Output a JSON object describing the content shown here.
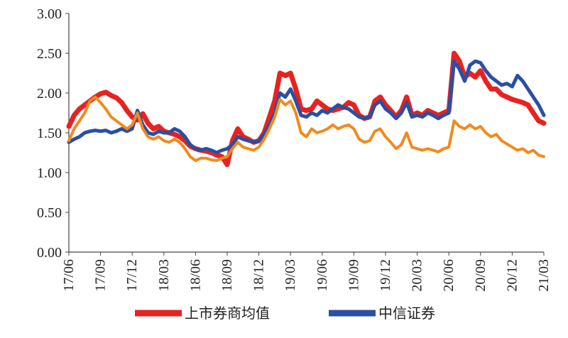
{
  "chart_data": {
    "type": "line",
    "title": "",
    "xlabel": "",
    "ylabel": "",
    "ylim": [
      0,
      3.0
    ],
    "y_ticks": [
      "0.00",
      "0.50",
      "1.00",
      "1.50",
      "2.00",
      "2.50",
      "3.00"
    ],
    "x_ticks": [
      "17/06",
      "17/09",
      "17/12",
      "18/03",
      "18/06",
      "18/09",
      "18/12",
      "19/03",
      "19/06",
      "19/09",
      "19/12",
      "20/03",
      "20/06",
      "20/09",
      "20/12",
      "21/03"
    ],
    "grid": false,
    "legend_position": "bottom",
    "x_months": [
      0,
      0.5,
      1,
      1.5,
      2,
      2.5,
      3,
      3.5,
      4,
      4.5,
      5,
      5.5,
      6,
      6.5,
      7,
      7.5,
      8,
      8.5,
      9,
      9.5,
      10,
      10.5,
      11,
      11.5,
      12,
      12.5,
      13,
      13.5,
      14,
      14.5,
      15,
      15.5,
      16,
      16.5,
      17,
      17.5,
      18,
      18.5,
      19,
      19.5,
      20,
      20.5,
      21,
      21.5,
      22,
      22.5,
      23,
      23.5,
      24,
      24.5,
      25,
      25.5,
      26,
      26.5,
      27,
      27.5,
      28,
      28.5,
      29,
      29.5,
      30,
      30.5,
      31,
      31.5,
      32,
      32.5,
      33,
      33.5,
      34,
      34.5,
      35,
      35.5,
      36,
      36.5,
      37,
      37.5,
      38,
      38.5,
      39,
      39.5,
      40,
      40.5,
      41,
      41.5,
      42,
      42.5,
      43,
      43.5,
      44,
      44.5,
      45
    ],
    "series": [
      {
        "name": "上市券商均值",
        "color": "#e8221f",
        "values": [
          1.58,
          1.72,
          1.8,
          1.85,
          1.9,
          1.95,
          1.99,
          2.01,
          1.97,
          1.94,
          1.88,
          1.78,
          1.7,
          1.66,
          1.74,
          1.62,
          1.55,
          1.58,
          1.52,
          1.5,
          1.48,
          1.45,
          1.4,
          1.33,
          1.3,
          1.28,
          1.27,
          1.25,
          1.22,
          1.2,
          1.1,
          1.4,
          1.55,
          1.45,
          1.42,
          1.38,
          1.4,
          1.5,
          1.7,
          1.9,
          2.25,
          2.22,
          2.25,
          2.05,
          1.8,
          1.78,
          1.8,
          1.9,
          1.85,
          1.8,
          1.78,
          1.8,
          1.82,
          1.88,
          1.85,
          1.72,
          1.68,
          1.7,
          1.9,
          1.95,
          1.85,
          1.78,
          1.7,
          1.78,
          1.95,
          1.72,
          1.75,
          1.72,
          1.78,
          1.75,
          1.72,
          1.75,
          1.78,
          2.5,
          2.4,
          2.2,
          2.25,
          2.2,
          2.28,
          2.15,
          2.05,
          2.05,
          1.98,
          1.95,
          1.92,
          1.9,
          1.88,
          1.85,
          1.75,
          1.65,
          1.62
        ]
      },
      {
        "name": "中信证券",
        "color": "#2a4fa3",
        "values": [
          1.38,
          1.42,
          1.45,
          1.5,
          1.52,
          1.53,
          1.52,
          1.53,
          1.5,
          1.52,
          1.55,
          1.52,
          1.55,
          1.78,
          1.6,
          1.5,
          1.48,
          1.52,
          1.5,
          1.5,
          1.55,
          1.52,
          1.45,
          1.35,
          1.3,
          1.28,
          1.3,
          1.28,
          1.25,
          1.28,
          1.3,
          1.35,
          1.45,
          1.42,
          1.4,
          1.38,
          1.4,
          1.48,
          1.6,
          1.75,
          2.0,
          1.95,
          2.05,
          1.9,
          1.72,
          1.7,
          1.75,
          1.72,
          1.78,
          1.75,
          1.8,
          1.85,
          1.82,
          1.8,
          1.75,
          1.7,
          1.68,
          1.7,
          1.85,
          1.9,
          1.8,
          1.75,
          1.68,
          1.75,
          1.88,
          1.7,
          1.72,
          1.7,
          1.75,
          1.72,
          1.68,
          1.72,
          1.75,
          2.4,
          2.3,
          2.15,
          2.35,
          2.4,
          2.38,
          2.28,
          2.2,
          2.15,
          2.1,
          2.12,
          2.08,
          2.22,
          2.15,
          2.05,
          1.95,
          1.85,
          1.72
        ]
      },
      {
        "name": "",
        "color": "#f08a1e",
        "values": [
          1.4,
          1.55,
          1.65,
          1.75,
          1.9,
          1.95,
          1.88,
          1.8,
          1.7,
          1.65,
          1.6,
          1.55,
          1.6,
          1.75,
          1.55,
          1.45,
          1.42,
          1.45,
          1.4,
          1.38,
          1.42,
          1.38,
          1.3,
          1.2,
          1.15,
          1.18,
          1.18,
          1.16,
          1.15,
          1.18,
          1.2,
          1.3,
          1.38,
          1.32,
          1.3,
          1.28,
          1.32,
          1.42,
          1.55,
          1.7,
          1.92,
          1.85,
          1.9,
          1.75,
          1.5,
          1.45,
          1.55,
          1.5,
          1.52,
          1.55,
          1.6,
          1.55,
          1.58,
          1.6,
          1.55,
          1.42,
          1.38,
          1.4,
          1.52,
          1.55,
          1.45,
          1.38,
          1.3,
          1.35,
          1.5,
          1.32,
          1.3,
          1.28,
          1.3,
          1.28,
          1.26,
          1.3,
          1.32,
          1.65,
          1.58,
          1.55,
          1.6,
          1.55,
          1.58,
          1.5,
          1.45,
          1.48,
          1.4,
          1.36,
          1.32,
          1.28,
          1.3,
          1.25,
          1.28,
          1.22,
          1.2
        ]
      }
    ]
  }
}
